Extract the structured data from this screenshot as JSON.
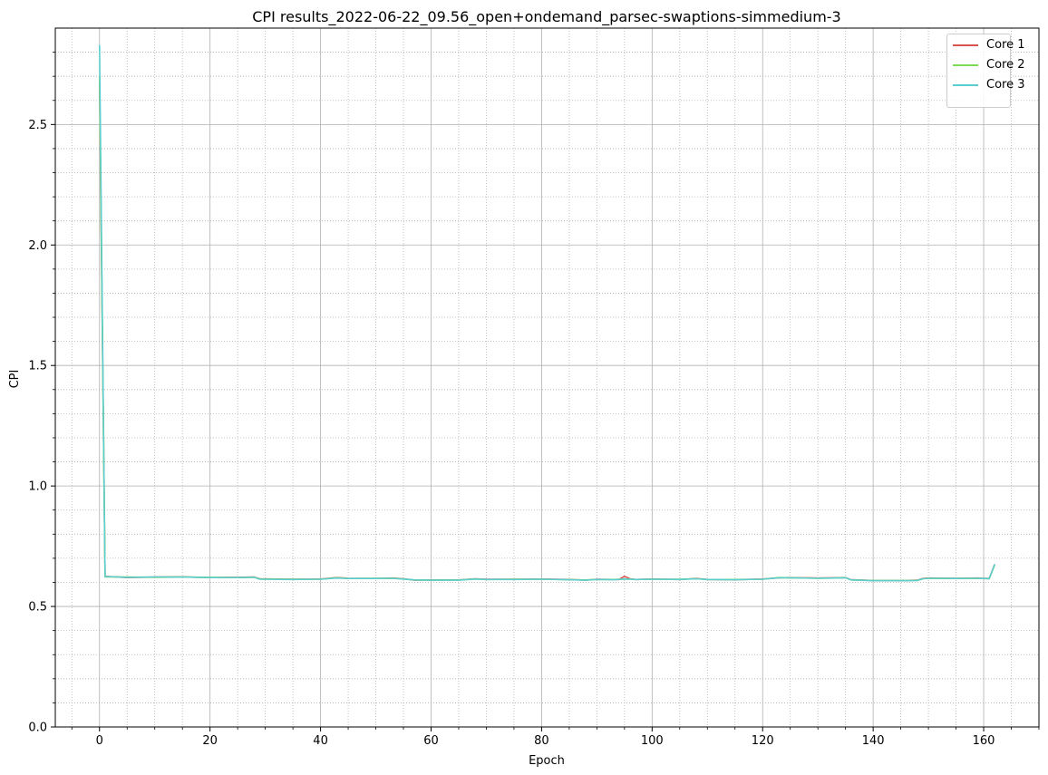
{
  "chart_data": {
    "type": "line",
    "title": "CPI results_2022-06-22_09.56_open+ondemand_parsec-swaptions-simmedium-3",
    "xlabel": "Epoch",
    "ylabel": "CPI",
    "xlim": [
      -8,
      170
    ],
    "ylim": [
      0,
      2.9
    ],
    "xticks": [
      0,
      20,
      40,
      60,
      80,
      100,
      120,
      140,
      160
    ],
    "xtick_labels": [
      "0",
      "20",
      "40",
      "60",
      "80",
      "100",
      "120",
      "140",
      "160"
    ],
    "yticks": [
      0.0,
      0.5,
      1.0,
      1.5,
      2.0,
      2.5
    ],
    "ytick_labels": [
      "0.0",
      "0.5",
      "1.0",
      "1.5",
      "2.0",
      "2.5"
    ],
    "grid": true,
    "minor_grid": true,
    "legend_position": "top-right",
    "x_anchors": [
      0,
      1,
      5,
      10,
      15,
      20,
      25,
      28,
      29,
      35,
      40,
      43,
      45,
      50,
      53,
      55,
      57,
      60,
      65,
      68,
      70,
      75,
      80,
      85,
      88,
      90,
      93,
      94,
      95,
      96,
      97,
      100,
      105,
      108,
      110,
      115,
      120,
      123,
      125,
      130,
      133,
      135,
      136,
      140,
      145,
      148,
      149,
      150,
      155,
      159,
      160,
      161,
      162
    ],
    "series": [
      {
        "name": "Core 1",
        "color": "#d9534f",
        "values": [
          2.68,
          0.625,
          0.62,
          0.622,
          0.623,
          0.62,
          0.621,
          0.622,
          0.615,
          0.613,
          0.614,
          0.62,
          0.617,
          0.616,
          0.618,
          0.615,
          0.609,
          0.61,
          0.61,
          0.615,
          0.613,
          0.613,
          0.614,
          0.612,
          0.609,
          0.613,
          0.612,
          0.612,
          0.625,
          0.615,
          0.612,
          0.614,
          0.612,
          0.616,
          0.612,
          0.611,
          0.614,
          0.619,
          0.62,
          0.618,
          0.619,
          0.62,
          0.611,
          0.608,
          0.607,
          0.609,
          0.616,
          0.618,
          0.617,
          0.618,
          0.617,
          0.616,
          0.675
        ]
      },
      {
        "name": "Core 2",
        "color": "#7ed957",
        "values": [
          2.7,
          0.623,
          0.622,
          0.621,
          0.622,
          0.621,
          0.62,
          0.621,
          0.614,
          0.613,
          0.613,
          0.619,
          0.616,
          0.617,
          0.617,
          0.614,
          0.61,
          0.609,
          0.61,
          0.614,
          0.612,
          0.613,
          0.613,
          0.611,
          0.61,
          0.612,
          0.612,
          0.613,
          0.614,
          0.613,
          0.612,
          0.613,
          0.613,
          0.615,
          0.612,
          0.612,
          0.613,
          0.62,
          0.619,
          0.617,
          0.618,
          0.619,
          0.61,
          0.608,
          0.608,
          0.608,
          0.615,
          0.617,
          0.616,
          0.617,
          0.616,
          0.615,
          0.672
        ]
      },
      {
        "name": "Core 3",
        "color": "#5bcfcf",
        "values": [
          2.83,
          0.624,
          0.621,
          0.622,
          0.622,
          0.62,
          0.62,
          0.621,
          0.613,
          0.612,
          0.613,
          0.618,
          0.616,
          0.616,
          0.617,
          0.614,
          0.61,
          0.609,
          0.609,
          0.614,
          0.612,
          0.612,
          0.613,
          0.611,
          0.609,
          0.612,
          0.611,
          0.612,
          0.614,
          0.613,
          0.612,
          0.613,
          0.612,
          0.615,
          0.612,
          0.611,
          0.613,
          0.619,
          0.619,
          0.617,
          0.618,
          0.619,
          0.61,
          0.607,
          0.607,
          0.608,
          0.615,
          0.617,
          0.616,
          0.617,
          0.616,
          0.615,
          0.675
        ]
      }
    ]
  }
}
